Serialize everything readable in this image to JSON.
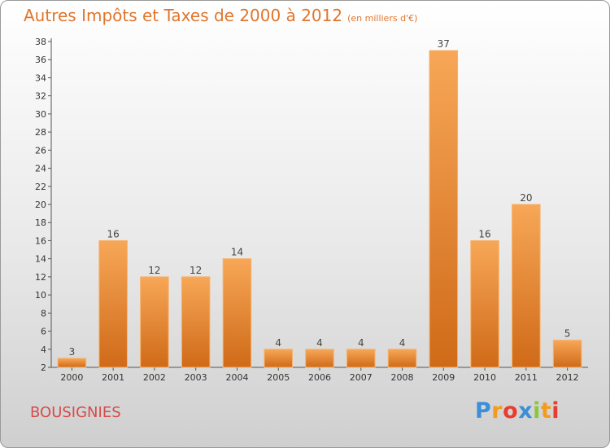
{
  "chart_data": {
    "type": "bar",
    "title": "Autres Impôts et Taxes de 2000 à 2012",
    "subtitle": "(en milliers d'€)",
    "categories": [
      "2000",
      "2001",
      "2002",
      "2003",
      "2004",
      "2005",
      "2006",
      "2007",
      "2008",
      "2009",
      "2010",
      "2011",
      "2012"
    ],
    "values": [
      3,
      16,
      12,
      12,
      14,
      4,
      4,
      4,
      4,
      37,
      16,
      20,
      5
    ],
    "ylim": [
      2,
      38
    ],
    "yticks": [
      2,
      4,
      6,
      8,
      10,
      12,
      14,
      16,
      18,
      20,
      22,
      24,
      26,
      28,
      30,
      32,
      34,
      36,
      38
    ],
    "grid": false,
    "bar_color": "#f0953e"
  },
  "place": "BOUSIGNIES",
  "logo": {
    "letters": [
      "P",
      "r",
      "o",
      "x",
      "i",
      "t",
      "i"
    ],
    "colors": [
      "#3a8fd8",
      "#f29b1d",
      "#e83c2e",
      "#3a8fd8",
      "#8cc63f",
      "#f29b1d",
      "#e83c2e"
    ]
  }
}
